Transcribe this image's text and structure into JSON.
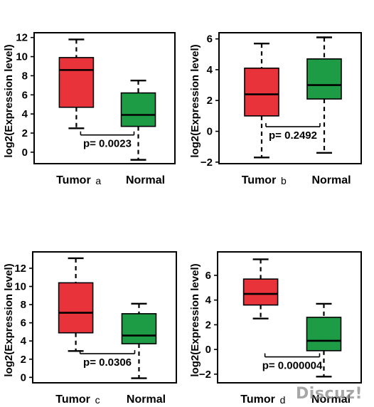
{
  "chart_data": [
    {
      "type": "box",
      "panel": "a",
      "ylabel": "log2(Expression level)",
      "categories": [
        "Tumor",
        "Normal"
      ],
      "panel_suffix": "a",
      "ylim": [
        -1.2,
        12.5
      ],
      "yticks": [
        0,
        2,
        4,
        6,
        8,
        10,
        12
      ],
      "series": [
        {
          "whisker_low": 2.5,
          "q1": 4.7,
          "median": 8.6,
          "q3": 9.9,
          "whisker_high": 11.8,
          "color": "#e8333b"
        },
        {
          "whisker_low": -0.8,
          "q1": 2.7,
          "median": 3.9,
          "q3": 6.2,
          "whisker_high": 7.5,
          "color": "#1e9b45"
        }
      ],
      "annotation": "p= 0.0023",
      "bracket_y": 1.8
    },
    {
      "type": "box",
      "panel": "b",
      "ylabel": "log2(Expression level)",
      "categories": [
        "Tumor",
        "Normal"
      ],
      "panel_suffix": "b",
      "ylim": [
        -2.1,
        6.4
      ],
      "yticks": [
        -2,
        0,
        2,
        4,
        6
      ],
      "series": [
        {
          "whisker_low": -1.7,
          "q1": 1.0,
          "median": 2.4,
          "q3": 4.1,
          "whisker_high": 5.7,
          "color": "#e8333b"
        },
        {
          "whisker_low": -1.4,
          "q1": 2.1,
          "median": 3.0,
          "q3": 4.7,
          "whisker_high": 6.1,
          "color": "#1e9b45"
        }
      ],
      "annotation": "p= 0.2492",
      "bracket_y": 0.3
    },
    {
      "type": "box",
      "panel": "c",
      "ylabel": "log2(Expression level)",
      "categories": [
        "Tumor",
        "Normal"
      ],
      "panel_suffix": "c",
      "ylim": [
        -0.6,
        13.8
      ],
      "yticks": [
        0,
        2,
        4,
        6,
        8,
        10,
        12
      ],
      "series": [
        {
          "whisker_low": 2.9,
          "q1": 4.9,
          "median": 7.1,
          "q3": 10.4,
          "whisker_high": 13.1,
          "color": "#e8333b"
        },
        {
          "whisker_low": -0.1,
          "q1": 3.7,
          "median": 4.6,
          "q3": 7.0,
          "whisker_high": 8.1,
          "color": "#1e9b45"
        }
      ],
      "annotation": "p= 0.0306",
      "bracket_y": 2.6
    },
    {
      "type": "box",
      "panel": "d",
      "ylabel": "log2(Expression level)",
      "categories": [
        "Tumor",
        "Normal"
      ],
      "panel_suffix": "d",
      "ylim": [
        -2.7,
        7.9
      ],
      "yticks": [
        -2,
        0,
        2,
        4,
        6
      ],
      "series": [
        {
          "whisker_low": 2.5,
          "q1": 3.6,
          "median": 4.5,
          "q3": 5.7,
          "whisker_high": 7.3,
          "color": "#e8333b"
        },
        {
          "whisker_low": -2.2,
          "q1": -0.1,
          "median": 0.7,
          "q3": 2.6,
          "whisker_high": 3.7,
          "color": "#1e9b45"
        }
      ],
      "annotation": "p= 0.000004",
      "bracket_y": -0.6
    }
  ],
  "watermark": "Discuz!"
}
